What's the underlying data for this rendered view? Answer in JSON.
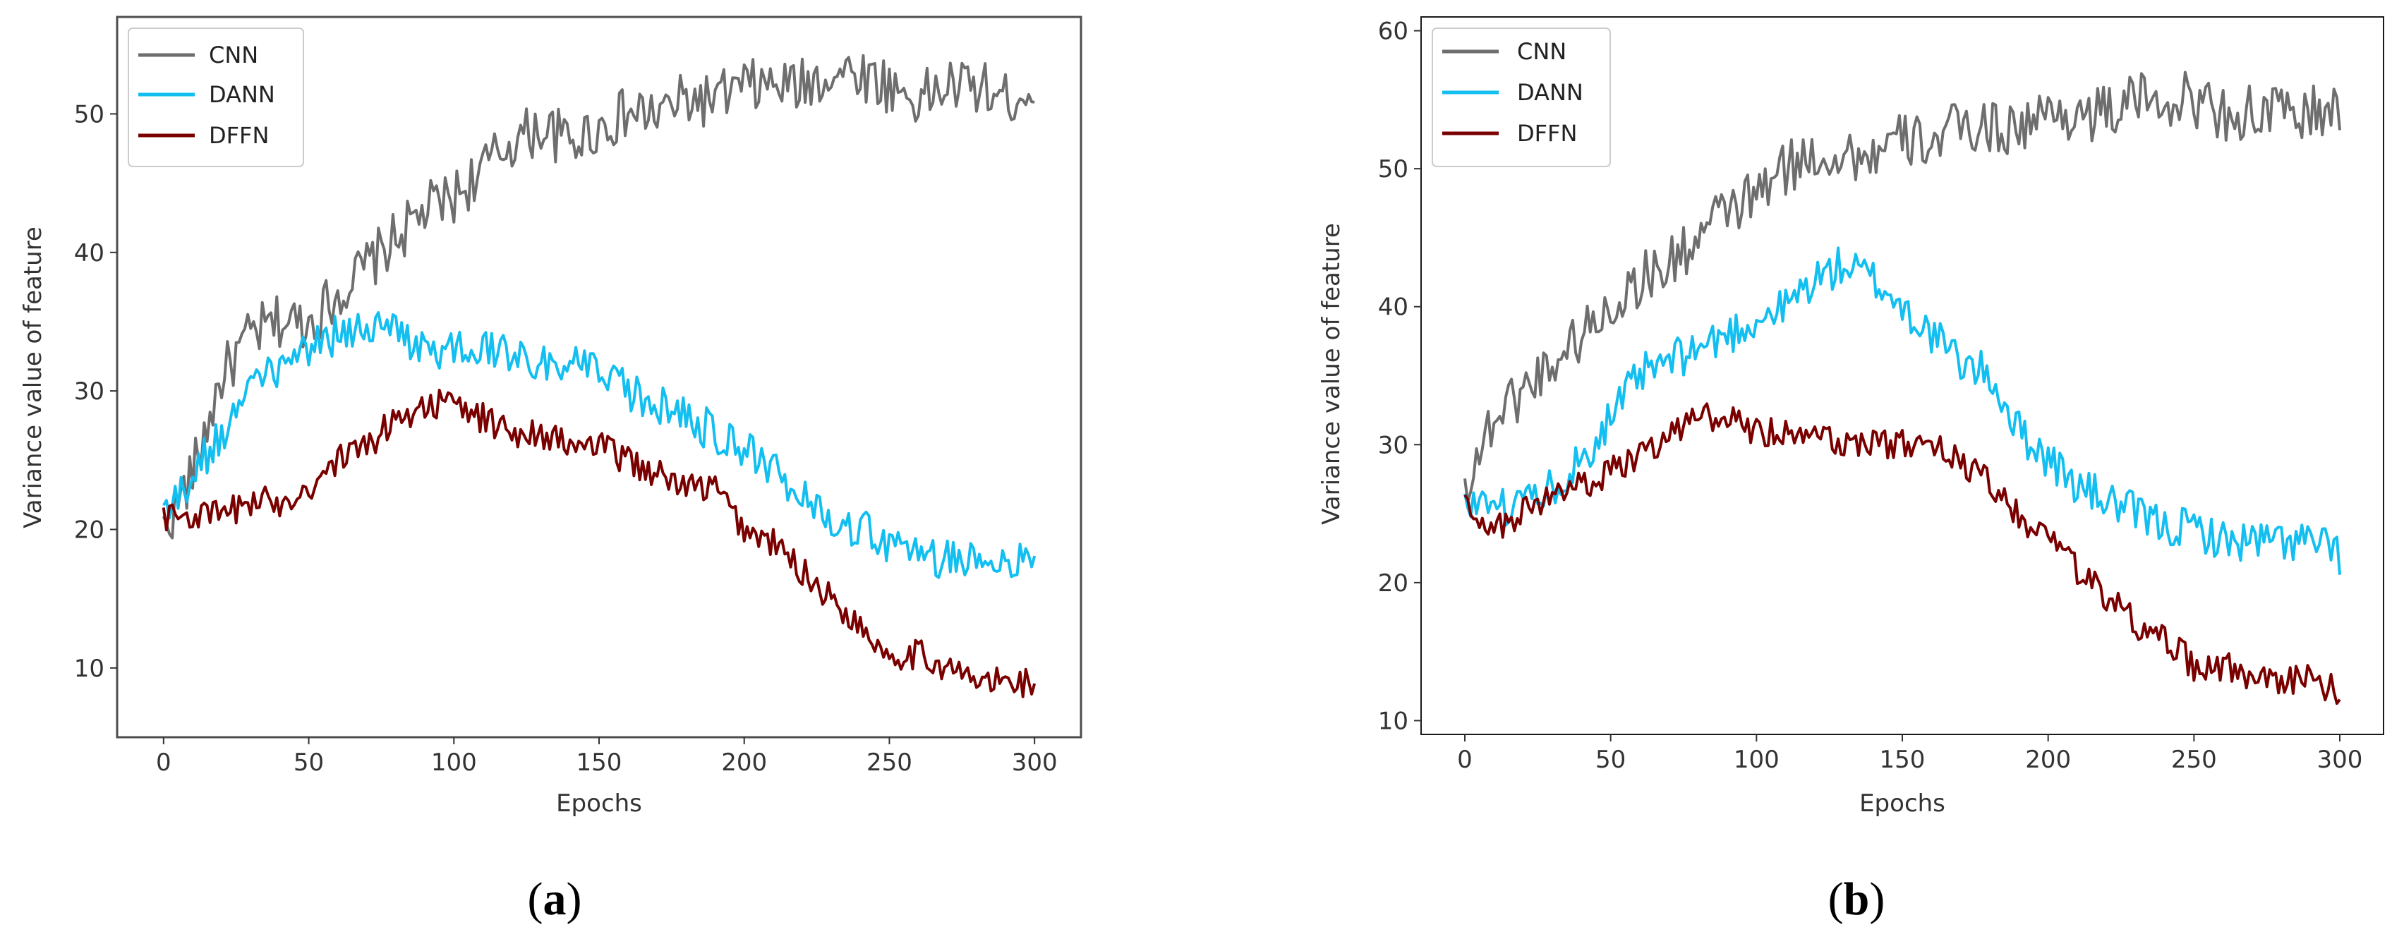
{
  "captions": [
    {
      "open": "(",
      "letter": "a",
      "close": ")"
    },
    {
      "open": "(",
      "letter": "b",
      "close": ")"
    }
  ],
  "colors": {
    "CNN": "#6e6e6e",
    "DANN": "#12bff0",
    "DFFN": "#7a0000"
  },
  "chart_data": [
    {
      "type": "line",
      "title": "",
      "xlabel": "Epochs",
      "ylabel": "Variance value of feature",
      "xlim": [
        -16,
        316
      ],
      "ylim": [
        5,
        57
      ],
      "xticks": [
        0,
        50,
        100,
        150,
        200,
        250,
        300
      ],
      "yticks": [
        10,
        20,
        30,
        40,
        50
      ],
      "legend": "top-left",
      "series": [
        {
          "name": "CNN",
          "x": [
            0,
            10,
            20,
            30,
            40,
            50,
            60,
            70,
            80,
            90,
            100,
            110,
            120,
            130,
            140,
            150,
            160,
            170,
            180,
            190,
            200,
            210,
            220,
            230,
            240,
            250,
            260,
            270,
            280,
            290,
            300
          ],
          "y": [
            20,
            24,
            31,
            34,
            35,
            35,
            37,
            39,
            41,
            43,
            44,
            46,
            48,
            49,
            48,
            49,
            50,
            50,
            51,
            51,
            52,
            52,
            52,
            53,
            53,
            52,
            51,
            52,
            52,
            51,
            52
          ]
        },
        {
          "name": "DANN",
          "x": [
            0,
            10,
            20,
            30,
            40,
            50,
            60,
            70,
            80,
            90,
            100,
            110,
            120,
            130,
            140,
            150,
            160,
            170,
            180,
            190,
            200,
            210,
            220,
            230,
            240,
            250,
            260,
            270,
            280,
            290,
            300
          ],
          "y": [
            21,
            24,
            27,
            30,
            32,
            33,
            34,
            35,
            34,
            33,
            33,
            33,
            33,
            32,
            32,
            31,
            30,
            29,
            28,
            27,
            26,
            24,
            23,
            21,
            20,
            19,
            18,
            18,
            18,
            18,
            17
          ]
        },
        {
          "name": "DFFN",
          "x": [
            0,
            10,
            20,
            30,
            40,
            50,
            60,
            70,
            80,
            90,
            100,
            110,
            120,
            130,
            140,
            150,
            160,
            170,
            180,
            190,
            200,
            210,
            220,
            230,
            240,
            250,
            260,
            270,
            280,
            290,
            300
          ],
          "y": [
            21,
            21,
            21,
            22,
            22,
            23,
            25,
            26,
            28,
            29,
            29,
            28,
            27,
            27,
            26,
            26,
            25,
            24,
            23,
            23,
            20,
            19,
            17,
            15,
            13,
            11,
            11,
            10,
            9,
            9,
            9
          ]
        }
      ]
    },
    {
      "type": "line",
      "title": "",
      "xlabel": "Epochs",
      "ylabel": "Variance value of feature",
      "xlim": [
        -15,
        315
      ],
      "ylim": [
        9,
        61
      ],
      "xticks": [
        0,
        50,
        100,
        150,
        200,
        250,
        300
      ],
      "yticks": [
        10,
        20,
        30,
        40,
        50,
        60
      ],
      "legend": "top-left",
      "series": [
        {
          "name": "CNN",
          "x": [
            0,
            10,
            20,
            30,
            40,
            50,
            60,
            70,
            80,
            90,
            100,
            110,
            120,
            130,
            140,
            150,
            160,
            170,
            180,
            190,
            200,
            210,
            220,
            230,
            240,
            250,
            260,
            270,
            280,
            290,
            300
          ],
          "y": [
            27,
            32,
            34,
            36,
            38,
            40,
            42,
            43,
            45,
            47,
            48,
            50,
            51,
            51,
            51,
            52,
            52,
            53,
            53,
            53,
            54,
            54,
            54,
            55,
            55,
            55,
            54,
            54,
            54,
            54,
            54
          ]
        },
        {
          "name": "DANN",
          "x": [
            0,
            10,
            20,
            30,
            40,
            50,
            60,
            70,
            80,
            90,
            100,
            110,
            120,
            130,
            140,
            150,
            160,
            170,
            180,
            190,
            200,
            210,
            220,
            230,
            240,
            250,
            260,
            270,
            280,
            290,
            300
          ],
          "y": [
            26,
            25,
            26,
            27,
            29,
            32,
            35,
            36,
            37,
            38,
            39,
            40,
            42,
            43,
            42,
            40,
            38,
            36,
            35,
            31,
            29,
            27,
            26,
            25,
            24,
            24,
            23,
            23,
            23,
            23,
            22
          ]
        },
        {
          "name": "DFFN",
          "x": [
            0,
            10,
            20,
            30,
            40,
            50,
            60,
            70,
            80,
            90,
            100,
            110,
            120,
            130,
            140,
            150,
            160,
            170,
            180,
            190,
            200,
            210,
            220,
            230,
            240,
            250,
            260,
            270,
            280,
            290,
            300
          ],
          "y": [
            26,
            24,
            25,
            26,
            27,
            28,
            29,
            31,
            32,
            32,
            31,
            31,
            31,
            30,
            30,
            30,
            30,
            29,
            27,
            25,
            23,
            21,
            19,
            17,
            16,
            14,
            14,
            13,
            13,
            13,
            12
          ]
        }
      ]
    }
  ]
}
